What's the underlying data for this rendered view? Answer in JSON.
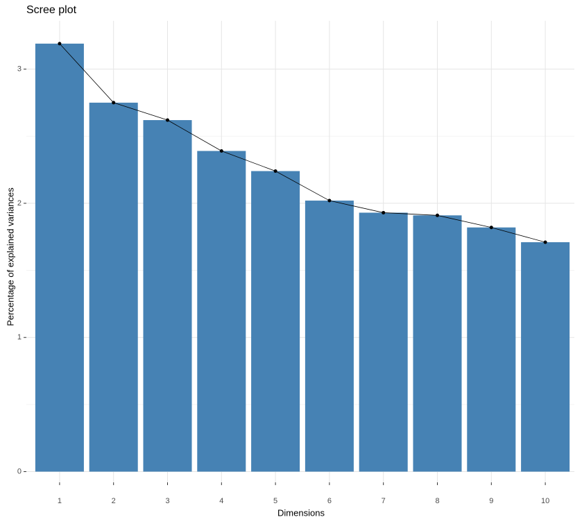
{
  "chart_data": {
    "type": "bar",
    "title": "Scree plot",
    "x_label": "Dimensions",
    "y_label": "Percentage of explained variances",
    "categories": [
      "1",
      "2",
      "3",
      "4",
      "5",
      "6",
      "7",
      "8",
      "9",
      "10"
    ],
    "values": [
      3.19,
      2.75,
      2.62,
      2.39,
      2.24,
      2.02,
      1.93,
      1.91,
      1.82,
      1.71
    ],
    "color": "#4682b4",
    "line_color": "#000000",
    "line_overlay": true,
    "ylim": [
      -0.08,
      3.36
    ],
    "yticks": [
      0,
      1,
      2,
      3
    ],
    "y_minor_grid": [
      0.5,
      1.5,
      2.5
    ],
    "grid": true
  }
}
